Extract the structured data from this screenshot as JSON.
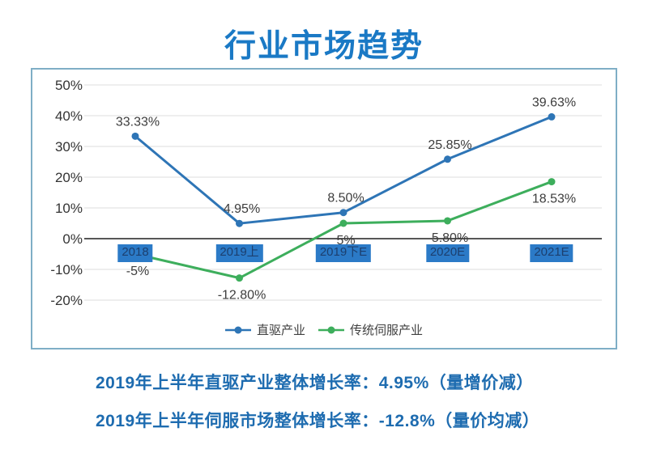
{
  "page": {
    "title": "行业市场趋势",
    "footnotes": [
      "2019年上半年直驱产业整体增长率：4.95%（量增价减）",
      "2019年上半年伺服市场整体增长率：-12.8%（量价均减）"
    ]
  },
  "colors": {
    "title": "#1a79c5",
    "footnote": "#1e6cb0",
    "chart_border": "#7faec6",
    "grid_line": "#dcdcdc",
    "axis_line": "#1f1f1f",
    "y_tick_text": "#333333",
    "data_label_text": "#3d3d3d",
    "x_label_bg": "#2b7ac7",
    "x_label_text": "#1c3f6e",
    "blue_series": "#2e75b6",
    "green_series": "#3dae5c"
  },
  "chart_data": {
    "type": "line",
    "title": "行业市场趋势",
    "categories": [
      "2018",
      "2019上",
      "2019下E",
      "2020E",
      "2021E"
    ],
    "series": [
      {
        "name": "直驱产业",
        "color_key": "blue_series",
        "values": [
          33.33,
          4.95,
          8.5,
          25.85,
          39.63
        ],
        "labels": [
          "33.33%",
          "4.95%",
          "8.50%",
          "25.85%",
          "39.63%"
        ],
        "label_side": "above"
      },
      {
        "name": "传统伺服产业",
        "color_key": "green_series",
        "values": [
          -5,
          -12.8,
          5,
          5.8,
          18.53
        ],
        "labels": [
          "-5%",
          "-12.80%",
          "5%",
          "5.80%",
          "18.53%"
        ],
        "label_side": "below"
      }
    ],
    "y_ticks": [
      50,
      40,
      30,
      20,
      10,
      0,
      -10,
      -20
    ],
    "y_tick_labels": [
      "50%",
      "40%",
      "30%",
      "20%",
      "10%",
      "0%",
      "-10%",
      "-20%"
    ],
    "ylim": [
      -25,
      55
    ],
    "grid": true,
    "legend_position": "bottom"
  }
}
